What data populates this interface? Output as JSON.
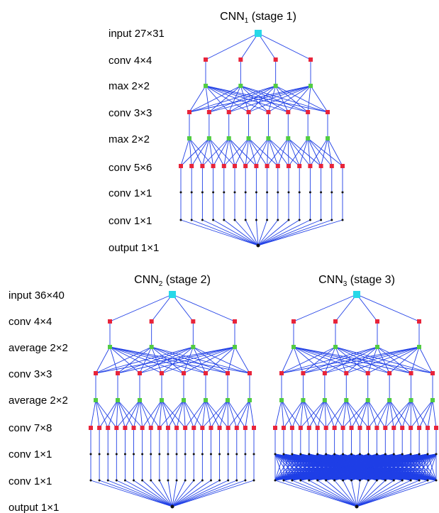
{
  "colors": {
    "edge": "#1f3fe6",
    "input_node": "#27d8e8",
    "conv_node": "#e8243a",
    "pool_node": "#52cc42",
    "small_node": "#111111"
  },
  "networks": [
    {
      "title_main": "CNN",
      "title_sub": "1",
      "title_rest": " (stage 1)",
      "labels": [
        "input 27×31",
        "conv 4×4",
        "max 2×2",
        "conv 3×3",
        "max 2×2",
        "conv 5×6",
        "conv 1×1",
        "conv 1×1",
        "output 1×1"
      ]
    },
    {
      "title_main": "CNN",
      "title_sub": "2",
      "title_rest": " (stage 2)",
      "labels": [
        "input 36×40",
        "conv 4×4",
        "average 2×2",
        "conv 3×3",
        "average 2×2",
        "conv 7×8",
        "conv 1×1",
        "conv 1×1",
        "output 1×1"
      ]
    },
    {
      "title_main": "CNN",
      "title_sub": "3",
      "title_rest": " (stage 3)"
    }
  ]
}
